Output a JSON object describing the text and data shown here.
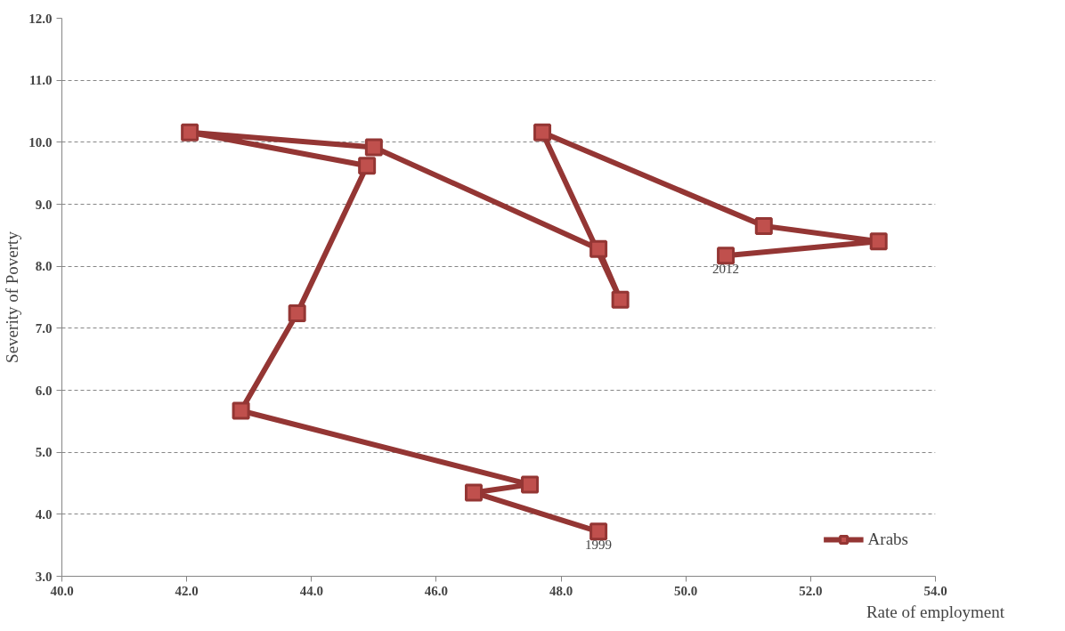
{
  "chart_data": {
    "type": "line",
    "xlabel": "Rate of employment",
    "ylabel": "Severity of Poverty",
    "xlim": [
      40,
      54
    ],
    "ylim": [
      3,
      12
    ],
    "xticks": [
      {
        "value": 40,
        "label": "40.0"
      },
      {
        "value": 42,
        "label": "42.0"
      },
      {
        "value": 44,
        "label": "44.0"
      },
      {
        "value": 46,
        "label": "46.0"
      },
      {
        "value": 48,
        "label": "48.0"
      },
      {
        "value": 50,
        "label": "50.0"
      },
      {
        "value": 52,
        "label": "52.0"
      },
      {
        "value": 54,
        "label": "54.0"
      }
    ],
    "yticks": [
      {
        "value": 3,
        "label": "3.0"
      },
      {
        "value": 4,
        "label": "4.0"
      },
      {
        "value": 5,
        "label": "5.0"
      },
      {
        "value": 6,
        "label": "6.0"
      },
      {
        "value": 7,
        "label": "7.0"
      },
      {
        "value": 8,
        "label": "8.0"
      },
      {
        "value": 9,
        "label": "9.0"
      },
      {
        "value": 10,
        "label": "10.0"
      },
      {
        "value": 11,
        "label": "11.0"
      },
      {
        "value": 12,
        "label": "12.0"
      }
    ],
    "series": [
      {
        "name": "Arabs",
        "color": "#943634",
        "x": [
          48.6,
          46.6,
          47.5,
          42.87,
          43.77,
          44.89,
          42.05,
          45.0,
          48.6,
          48.95,
          47.7,
          51.25,
          53.09,
          50.64
        ],
        "values": [
          3.72,
          4.35,
          4.48,
          5.67,
          7.24,
          9.62,
          10.16,
          9.92,
          8.28,
          7.46,
          10.16,
          8.65,
          8.4,
          8.17
        ]
      }
    ],
    "annotations": [
      {
        "text": "1999",
        "x": 48.6,
        "y": 3.72
      },
      {
        "text": "2012",
        "x": 50.64,
        "y": 8.17
      }
    ],
    "grid": "y",
    "legend": "bottom right",
    "marker": "square",
    "line_style": "solid"
  }
}
